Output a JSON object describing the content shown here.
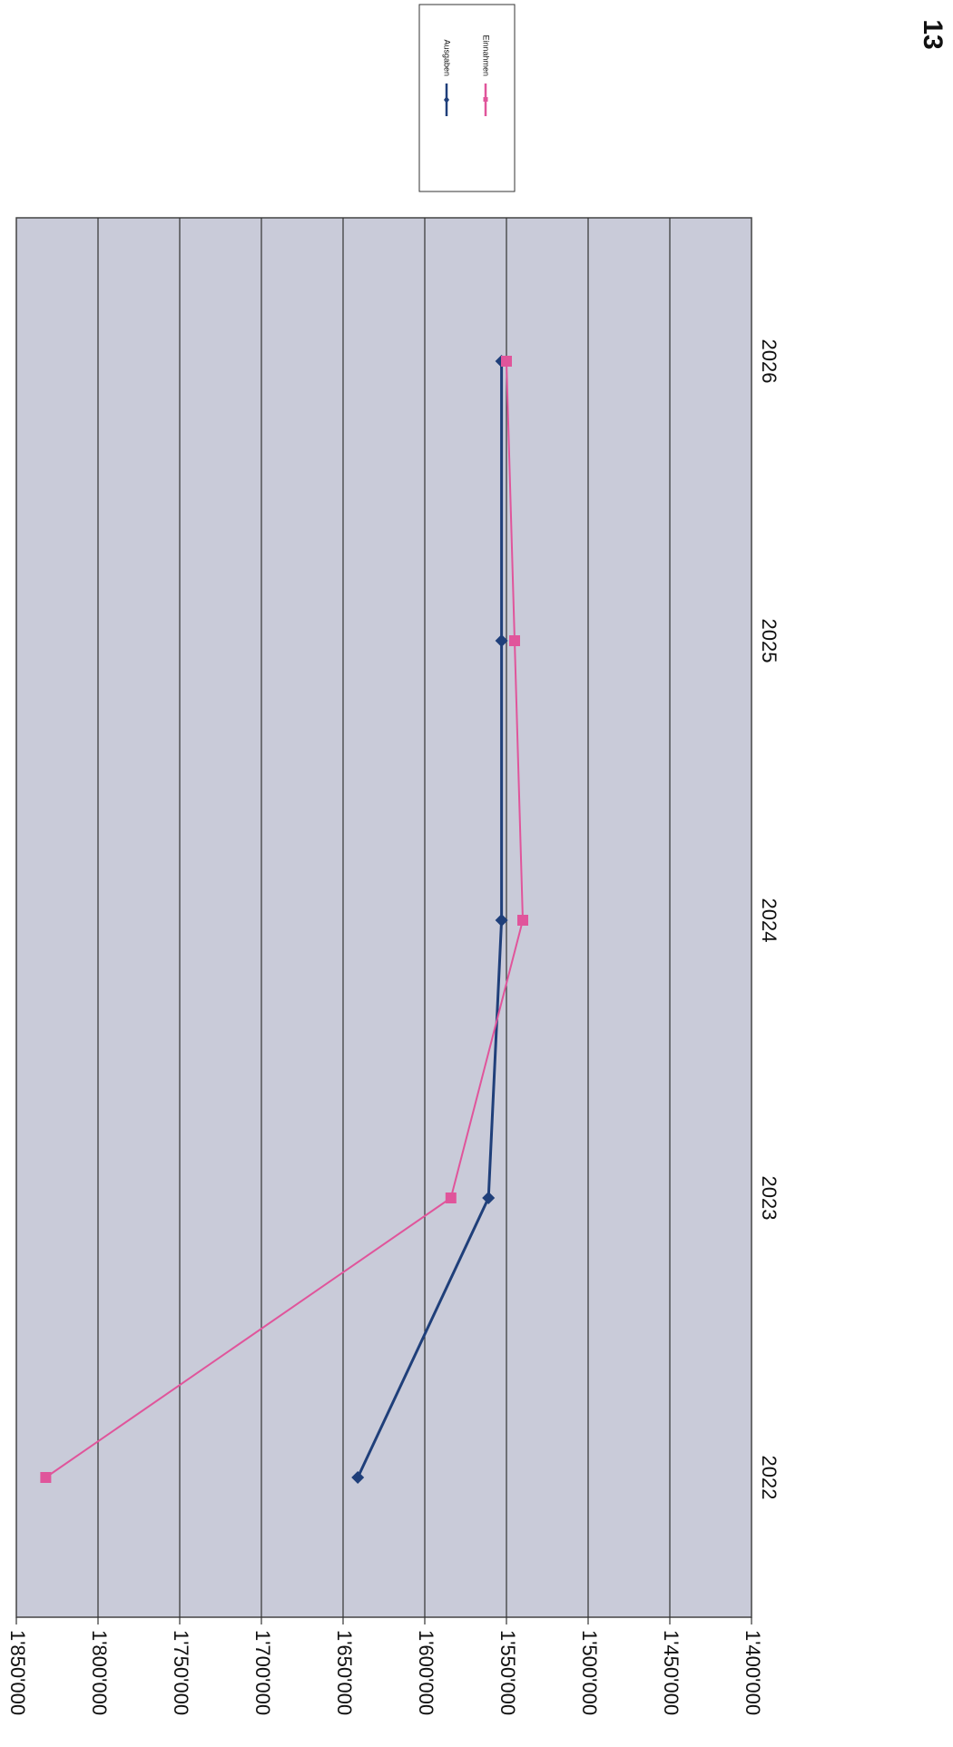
{
  "page_number": "13",
  "chart_data": {
    "type": "line",
    "orientation": "rotated-90-clockwise",
    "categories": [
      "2022",
      "2023",
      "2024",
      "2025",
      "2026"
    ],
    "series": [
      {
        "name": "Ausgaben",
        "values": [
          1641000,
          1561000,
          1553000,
          1553000,
          1553000
        ],
        "color": "#1f3f7a",
        "marker": "diamond"
      },
      {
        "name": "Einnahmen",
        "values": [
          1832000,
          1584000,
          1540000,
          1545000,
          1550000
        ],
        "color": "#e0559b",
        "marker": "square"
      }
    ],
    "ylim": [
      1400000,
      1850000
    ],
    "y_ticks": [
      1850000,
      1800000,
      1750000,
      1700000,
      1650000,
      1600000,
      1550000,
      1500000,
      1450000,
      1400000
    ],
    "y_tick_labels": [
      "1'850'000",
      "1'800'000",
      "1'750'000",
      "1'700'000",
      "1'650'000",
      "1'600'000",
      "1'550'000",
      "1'500'000",
      "1'450'000",
      "1'400'000"
    ],
    "grid": true,
    "plot_background": "#c9cbd9",
    "legend_position": "top-right"
  }
}
